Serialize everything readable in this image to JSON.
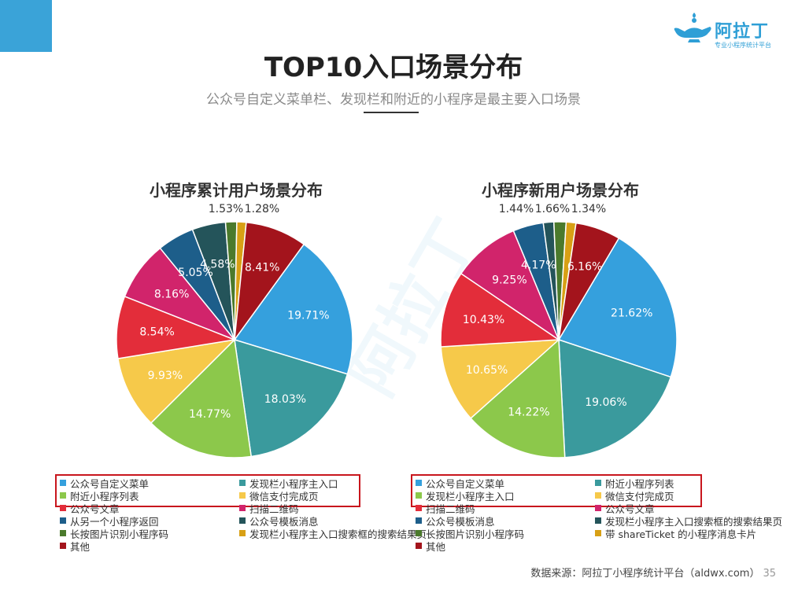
{
  "header": {
    "title": "TOP10入口场景分布",
    "subtitle": "公众号自定义菜单栏、发现栏和附近的小程序是最主要入口场景",
    "logo_text": "阿拉丁",
    "logo_tagline": "专业小程序统计平台"
  },
  "footer": {
    "source": "数据来源：阿拉丁小程序统计平台（aldwx.com）",
    "page": "35"
  },
  "watermark": "阿拉丁",
  "chart_data": [
    {
      "type": "pie",
      "title": "小程序累计用户场景分布",
      "slices": [
        {
          "label": "公众号自定义菜单",
          "value": 19.71,
          "display": "19.71%",
          "color": "#35a0dd"
        },
        {
          "label": "发现栏小程序主入口",
          "value": 18.03,
          "display": "18.03%",
          "color": "#3a9a9d"
        },
        {
          "label": "附近小程序列表",
          "value": 14.77,
          "display": "14.77%",
          "color": "#8cc84b"
        },
        {
          "label": "微信支付完成页",
          "value": 9.93,
          "display": "9.93%",
          "color": "#f6c94a"
        },
        {
          "label": "公众号文章",
          "value": 8.54,
          "display": "8.54%",
          "color": "#e32d3a"
        },
        {
          "label": "扫描二维码",
          "value": 8.16,
          "display": "8.16%",
          "color": "#d1246b"
        },
        {
          "label": "从另一个小程序返回",
          "value": 5.05,
          "display": "5.05%",
          "color": "#1d5e8a"
        },
        {
          "label": "公众号模板消息",
          "value": 4.58,
          "display": "4.58%",
          "color": "#24545a"
        },
        {
          "label": "长按图片识别小程序码",
          "value": 1.53,
          "display": "1.53%",
          "color": "#4b7a2c"
        },
        {
          "label": "发现栏小程序主入口搜索框的搜索结果页",
          "value": 1.28,
          "display": "1.28%",
          "color": "#d8a015"
        },
        {
          "label": "其他",
          "value": 8.41,
          "display": "8.41%",
          "color": "#a3141c"
        }
      ]
    },
    {
      "type": "pie",
      "title": "小程序新用户场景分布",
      "slices": [
        {
          "label": "公众号自定义菜单",
          "value": 21.62,
          "display": "21.62%",
          "color": "#35a0dd"
        },
        {
          "label": "附近小程序列表",
          "value": 19.06,
          "display": "19.06%",
          "color": "#3a9a9d"
        },
        {
          "label": "发现栏小程序主入口",
          "value": 14.22,
          "display": "14.22%",
          "color": "#8cc84b"
        },
        {
          "label": "微信支付完成页",
          "value": 10.65,
          "display": "10.65%",
          "color": "#f6c94a"
        },
        {
          "label": "扫描二维码",
          "value": 10.43,
          "display": "10.43%",
          "color": "#e32d3a"
        },
        {
          "label": "公众号文章",
          "value": 9.25,
          "display": "9.25%",
          "color": "#d1246b"
        },
        {
          "label": "公众号模板消息",
          "value": 4.17,
          "display": "4.17%",
          "color": "#1d5e8a"
        },
        {
          "label": "发现栏小程序主入口搜索框的搜索结果页",
          "value": 1.44,
          "display": "1.44%",
          "color": "#24545a"
        },
        {
          "label": "长按图片识别小程序码",
          "value": 1.66,
          "display": "1.66%",
          "color": "#4b7a2c"
        },
        {
          "label": "带 shareTicket 的小程序消息卡片",
          "value": 1.34,
          "display": "1.34%",
          "color": "#d8a015"
        },
        {
          "label": "其他",
          "value": 6.16,
          "display": "6.16%",
          "color": "#a3141c"
        }
      ]
    }
  ]
}
